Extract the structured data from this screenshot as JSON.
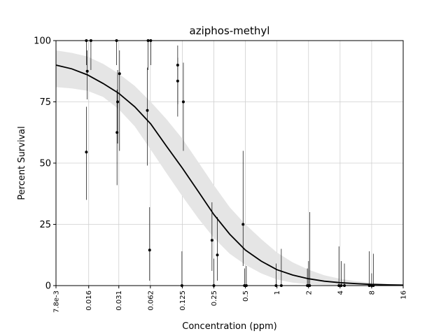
{
  "chart_data": {
    "type": "scatter",
    "title": "aziphos-methyl",
    "xlabel": "Concentration (ppm)",
    "ylabel": "Percent Survival",
    "x_scale": "log2",
    "xlim": [
      0.0078,
      16
    ],
    "ylim": [
      0,
      100
    ],
    "grid": true,
    "x_ticks": [
      {
        "value": 0.0078,
        "label": "7.8e-3"
      },
      {
        "value": 0.016,
        "label": "0.016"
      },
      {
        "value": 0.031,
        "label": "0.031"
      },
      {
        "value": 0.062,
        "label": "0.062"
      },
      {
        "value": 0.125,
        "label": "0.125"
      },
      {
        "value": 0.25,
        "label": "0.25"
      },
      {
        "value": 0.5,
        "label": "0.5"
      },
      {
        "value": 1,
        "label": "1"
      },
      {
        "value": 2,
        "label": "2"
      },
      {
        "value": 4,
        "label": "4"
      },
      {
        "value": 8,
        "label": "8"
      },
      {
        "value": 16,
        "label": "16"
      }
    ],
    "y_ticks": [
      {
        "value": 0,
        "label": "0"
      },
      {
        "value": 25,
        "label": "25"
      },
      {
        "value": 50,
        "label": "50"
      },
      {
        "value": 75,
        "label": "75"
      },
      {
        "value": 100,
        "label": "100"
      }
    ],
    "fit_curve": {
      "name": "dose-response fit",
      "x": [
        0.0078,
        0.011,
        0.0156,
        0.022,
        0.031,
        0.044,
        0.0625,
        0.088,
        0.125,
        0.177,
        0.25,
        0.354,
        0.5,
        0.707,
        1,
        1.41,
        2,
        2.83,
        4,
        5.66,
        8,
        11.3,
        16
      ],
      "y": [
        90,
        88.5,
        86,
        82.5,
        78.5,
        73,
        66,
        57,
        48,
        38.5,
        29,
        21,
        14.5,
        10,
        6.5,
        4.3,
        2.8,
        1.8,
        1.2,
        0.8,
        0.5,
        0.3,
        0.2
      ],
      "ci_lower": [
        81,
        80.5,
        79.5,
        77,
        72,
        65,
        55.5,
        46,
        36.5,
        27.5,
        19.5,
        13,
        8.5,
        5,
        2.5,
        1.2,
        0.5,
        0.2,
        0.1,
        0,
        0,
        0,
        0
      ],
      "ci_upper": [
        96,
        95,
        93.5,
        90.5,
        86.5,
        81.5,
        75,
        68,
        60,
        50.5,
        41,
        32,
        25,
        19,
        13.5,
        9.5,
        6.5,
        4.2,
        2.8,
        1.8,
        1.2,
        0.8,
        0.5
      ]
    },
    "points": [
      {
        "x": 0.0152,
        "y": 100,
        "lo": 90,
        "hi": 100
      },
      {
        "x": 0.0155,
        "y": 87.5,
        "lo": 76,
        "hi": 96
      },
      {
        "x": 0.0152,
        "y": 54.5,
        "lo": 35,
        "hi": 73
      },
      {
        "x": 0.0168,
        "y": 100,
        "lo": 88,
        "hi": 100
      },
      {
        "x": 0.0295,
        "y": 100,
        "lo": 90,
        "hi": 100
      },
      {
        "x": 0.0302,
        "y": 75,
        "lo": 58,
        "hi": 88
      },
      {
        "x": 0.0298,
        "y": 62.5,
        "lo": 41,
        "hi": 80
      },
      {
        "x": 0.0315,
        "y": 86.5,
        "lo": 55,
        "hi": 96
      },
      {
        "x": 0.059,
        "y": 100,
        "lo": 88,
        "hi": 100
      },
      {
        "x": 0.058,
        "y": 71.5,
        "lo": 49,
        "hi": 89
      },
      {
        "x": 0.0625,
        "y": 100,
        "lo": 90,
        "hi": 100
      },
      {
        "x": 0.061,
        "y": 14.5,
        "lo": 2,
        "hi": 32
      },
      {
        "x": 0.113,
        "y": 90,
        "lo": 74,
        "hi": 98
      },
      {
        "x": 0.113,
        "y": 83.5,
        "lo": 69,
        "hi": 93
      },
      {
        "x": 0.128,
        "y": 75,
        "lo": 55,
        "hi": 91
      },
      {
        "x": 0.124,
        "y": 0,
        "lo": 0,
        "hi": 14
      },
      {
        "x": 0.24,
        "y": 18.5,
        "lo": 6,
        "hi": 34
      },
      {
        "x": 0.25,
        "y": 0,
        "lo": 0,
        "hi": 11
      },
      {
        "x": 0.27,
        "y": 12.5,
        "lo": 2,
        "hi": 28
      },
      {
        "x": 0.475,
        "y": 25,
        "lo": 8,
        "hi": 55
      },
      {
        "x": 0.49,
        "y": 0,
        "lo": 0,
        "hi": 7
      },
      {
        "x": 0.51,
        "y": 0,
        "lo": 0,
        "hi": 8
      },
      {
        "x": 0.98,
        "y": 0,
        "lo": 0,
        "hi": 9
      },
      {
        "x": 1.1,
        "y": 0,
        "lo": 0,
        "hi": 15
      },
      {
        "x": 1.95,
        "y": 0,
        "lo": 0,
        "hi": 7
      },
      {
        "x": 2.05,
        "y": 0,
        "lo": 0,
        "hi": 30
      },
      {
        "x": 2.0,
        "y": 0,
        "lo": 0,
        "hi": 10
      },
      {
        "x": 3.9,
        "y": 0,
        "lo": 0,
        "hi": 16
      },
      {
        "x": 4.1,
        "y": 0,
        "lo": 0,
        "hi": 10
      },
      {
        "x": 4.4,
        "y": 0,
        "lo": 0,
        "hi": 9
      },
      {
        "x": 7.6,
        "y": 0,
        "lo": 0,
        "hi": 14
      },
      {
        "x": 8.3,
        "y": 0,
        "lo": 0,
        "hi": 13
      },
      {
        "x": 8.0,
        "y": 0,
        "lo": 0,
        "hi": 5
      }
    ],
    "colors": {
      "curve": "#000000",
      "band": "#e5e5e5",
      "grid": "#cfcfcf",
      "points": "#000000"
    }
  }
}
